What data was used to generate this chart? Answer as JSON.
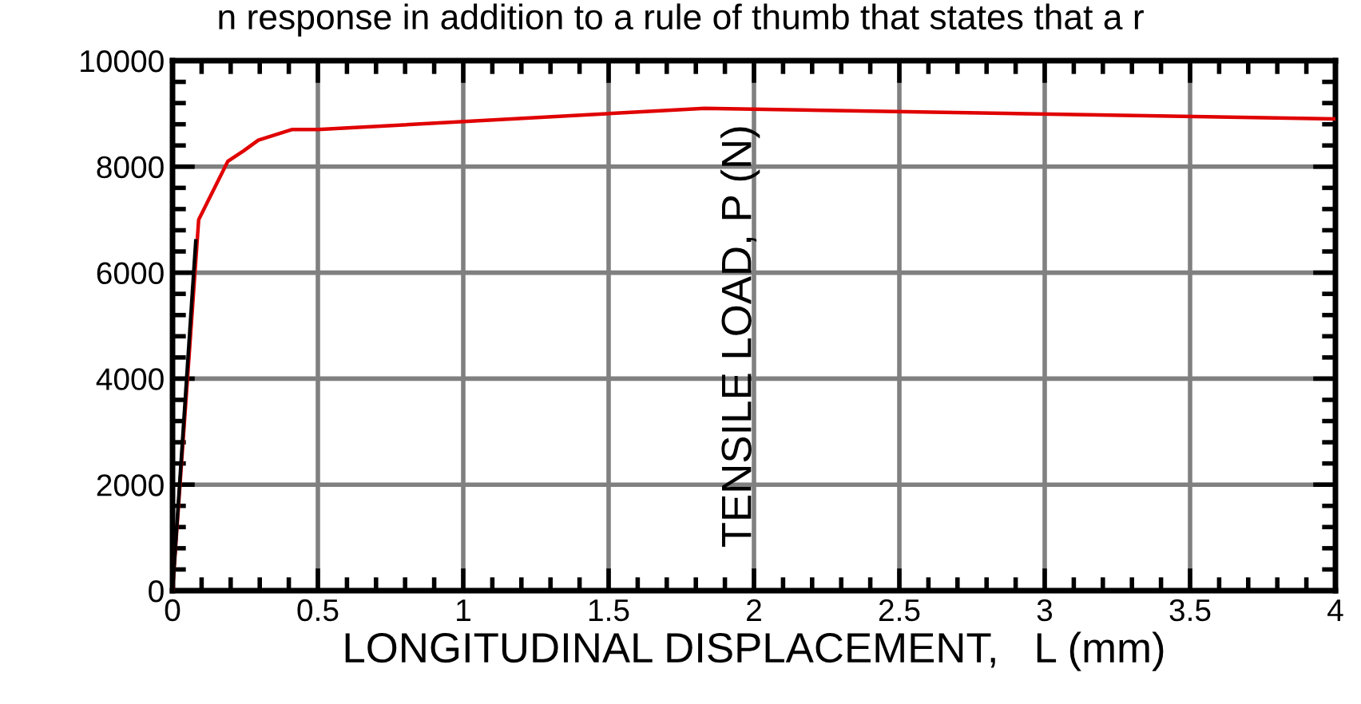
{
  "chart_data": {
    "type": "line",
    "xlabel": "LONGITUDINAL DISPLACEMENT,   L (mm)",
    "ylabel": "TENSILE LOAD, P (N)",
    "annotations": [
      "n response in addition to a rule of thumb that states that a r"
    ],
    "series": [
      {
        "color": "#e00000",
        "x": [
          0,
          0.09,
          0.19,
          0.245,
          0.295,
          0.41,
          0.5,
          1.83,
          4.0
        ],
        "values": [
          0,
          7000,
          8100,
          8300,
          8500,
          8700,
          8700,
          9100,
          8900
        ]
      },
      {
        "color": "#000000",
        "x": [
          0,
          0.08
        ],
        "values": [
          0,
          6600
        ]
      }
    ],
    "xlim": [
      0,
      4
    ],
    "ylim": [
      0,
      10000
    ],
    "xticks": [
      0,
      0.5,
      1,
      1.5,
      2,
      2.5,
      3,
      3.5,
      4
    ],
    "yticks": [
      0,
      2000,
      4000,
      6000,
      8000,
      10000
    ],
    "grid": true,
    "legend": false,
    "marker": "none",
    "line_style": "solid"
  }
}
